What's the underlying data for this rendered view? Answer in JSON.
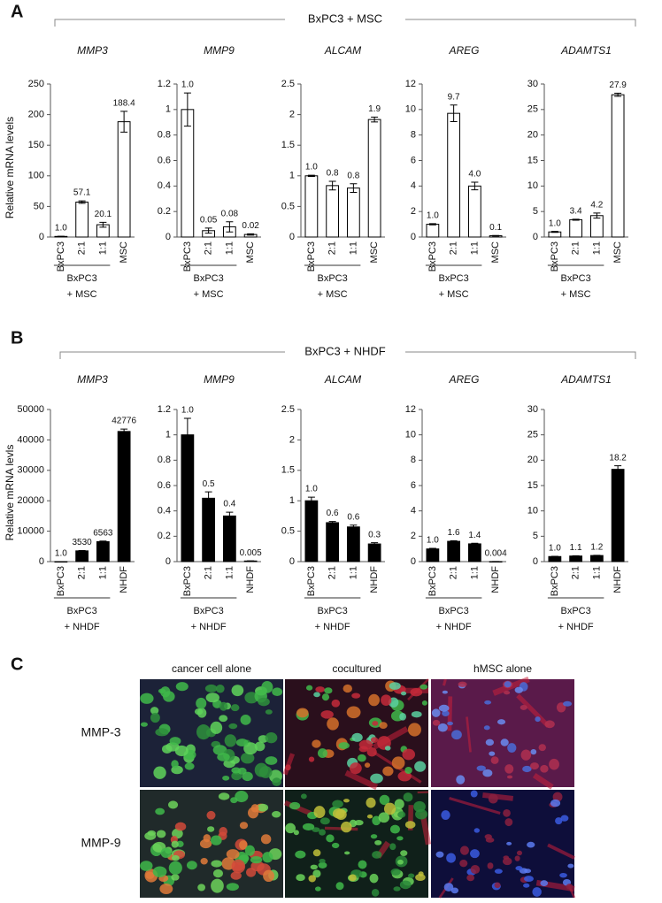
{
  "panels": {
    "a": {
      "label": "A",
      "group": "BxPC3 + MSC"
    },
    "b": {
      "label": "B",
      "group": "BxPC3 + NHDF"
    },
    "c": {
      "label": "C",
      "columns": [
        "cancer cell alone",
        "cocultured",
        "hMSC alone"
      ],
      "rows": [
        "MMP-3",
        "MMP-9"
      ]
    }
  },
  "chart_data": [
    {
      "type": "bar",
      "title": "MMP3",
      "ylabel": "Relative mRNA levels",
      "categories": [
        "BxPC3",
        "2:1",
        "1:1",
        "MSC"
      ],
      "group_label": [
        "BxPC3",
        "+ MSC"
      ],
      "values": [
        1.0,
        57.1,
        20.1,
        188.4
      ],
      "errors": [
        0.3,
        2,
        4,
        17
      ],
      "value_labels": [
        "1.0",
        "57.1",
        "20.1",
        "188.4"
      ],
      "ylim": [
        0,
        250
      ],
      "yticks": [
        0,
        50,
        100,
        150,
        200,
        250
      ],
      "color": "#ffffff"
    },
    {
      "type": "bar",
      "title": "MMP9",
      "categories": [
        "BxPC3",
        "2:1",
        "1:1",
        "MSC"
      ],
      "group_label": [
        "BxPC3",
        "+ MSC"
      ],
      "values": [
        1.0,
        0.05,
        0.08,
        0.02
      ],
      "errors": [
        0.13,
        0.02,
        0.04,
        0.005
      ],
      "value_labels": [
        "1.0",
        "0.05",
        "0.08",
        "0.02"
      ],
      "ylim": [
        0,
        1.2
      ],
      "yticks": [
        0,
        0.2,
        0.4,
        0.6,
        0.8,
        1,
        1.2
      ],
      "color": "#ffffff"
    },
    {
      "type": "bar",
      "title": "ALCAM",
      "categories": [
        "BxPC3",
        "2:1",
        "1:1",
        "MSC"
      ],
      "group_label": [
        "BxPC3",
        "+ MSC"
      ],
      "values": [
        1.0,
        0.84,
        0.8,
        1.92
      ],
      "errors": [
        0.01,
        0.07,
        0.07,
        0.04
      ],
      "value_labels": [
        "1.0",
        "0.8",
        "0.8",
        "1.9"
      ],
      "ylim": [
        0,
        2.5
      ],
      "yticks": [
        0,
        0.5,
        1,
        1.5,
        2,
        2.5
      ],
      "color": "#ffffff"
    },
    {
      "type": "bar",
      "title": "AREG",
      "categories": [
        "BxPC3",
        "2:1",
        "1:1",
        "MSC"
      ],
      "group_label": [
        "BxPC3",
        "+ MSC"
      ],
      "values": [
        1.0,
        9.7,
        4.0,
        0.1
      ],
      "errors": [
        0.05,
        0.65,
        0.3,
        0.02
      ],
      "value_labels": [
        "1.0",
        "9.7",
        "4.0",
        "0.1"
      ],
      "ylim": [
        0,
        12
      ],
      "yticks": [
        0,
        2,
        4,
        6,
        8,
        10,
        12
      ],
      "color": "#ffffff"
    },
    {
      "type": "bar",
      "title": "ADAMTS1",
      "categories": [
        "BxPC3",
        "2:1",
        "1:1",
        "MSC"
      ],
      "group_label": [
        "BxPC3",
        "+ MSC"
      ],
      "values": [
        1.0,
        3.4,
        4.2,
        27.9
      ],
      "errors": [
        0.1,
        0.1,
        0.5,
        0.3
      ],
      "value_labels": [
        "1.0",
        "3.4",
        "4.2",
        "27.9"
      ],
      "ylim": [
        0,
        30
      ],
      "yticks": [
        0,
        5,
        10,
        15,
        20,
        25,
        30
      ],
      "color": "#ffffff"
    },
    {
      "type": "bar",
      "title": "MMP3",
      "ylabel": "Relative mRNA levls",
      "categories": [
        "BxPC3",
        "2:1",
        "1:1",
        "NHDF"
      ],
      "group_label": [
        "BxPC3",
        "+ NHDF"
      ],
      "values": [
        1.0,
        3530,
        6563,
        42776
      ],
      "errors": [
        0,
        120,
        200,
        800
      ],
      "value_labels": [
        "1.0",
        "3530",
        "6563",
        "42776"
      ],
      "ylim": [
        0,
        50000
      ],
      "yticks": [
        0,
        10000,
        20000,
        30000,
        40000,
        50000
      ],
      "color": "#000000"
    },
    {
      "type": "bar",
      "title": "MMP9",
      "categories": [
        "BxPC3",
        "2:1",
        "1:1",
        "NHDF"
      ],
      "group_label": [
        "BxPC3",
        "+ NHDF"
      ],
      "values": [
        1.0,
        0.5,
        0.36,
        0.005
      ],
      "errors": [
        0.13,
        0.05,
        0.03,
        0.001
      ],
      "value_labels": [
        "1.0",
        "0.5",
        "0.4",
        "0.005"
      ],
      "ylim": [
        0,
        1.2
      ],
      "yticks": [
        0,
        0.2,
        0.4,
        0.6,
        0.8,
        1,
        1.2
      ],
      "color": "#000000"
    },
    {
      "type": "bar",
      "title": "ALCAM",
      "categories": [
        "BxPC3",
        "2:1",
        "1:1",
        "NHDF"
      ],
      "group_label": [
        "BxPC3",
        "+ NHDF"
      ],
      "values": [
        1.0,
        0.64,
        0.57,
        0.29
      ],
      "errors": [
        0.06,
        0.02,
        0.03,
        0.02
      ],
      "value_labels": [
        "1.0",
        "0.6",
        "0.6",
        "0.3"
      ],
      "ylim": [
        0,
        2.5
      ],
      "yticks": [
        0,
        0.5,
        1,
        1.5,
        2,
        2.5
      ],
      "color": "#000000"
    },
    {
      "type": "bar",
      "title": "AREG",
      "categories": [
        "BxPC3",
        "2:1",
        "1:1",
        "NHDF"
      ],
      "group_label": [
        "BxPC3",
        "+ NHDF"
      ],
      "values": [
        1.0,
        1.6,
        1.4,
        0.004
      ],
      "errors": [
        0.05,
        0.05,
        0.05,
        0.001
      ],
      "value_labels": [
        "1.0",
        "1.6",
        "1.4",
        "0.004"
      ],
      "ylim": [
        0,
        12
      ],
      "yticks": [
        0,
        2,
        4,
        6,
        8,
        10,
        12
      ],
      "color": "#000000"
    },
    {
      "type": "bar",
      "title": "ADAMTS1",
      "categories": [
        "BxPC3",
        "2:1",
        "1:1",
        "NHDF"
      ],
      "group_label": [
        "BxPC3",
        "+ NHDF"
      ],
      "values": [
        1.0,
        1.1,
        1.2,
        18.2
      ],
      "errors": [
        0.05,
        0.05,
        0.05,
        0.7
      ],
      "value_labels": [
        "1.0",
        "1.1",
        "1.2",
        "18.2"
      ],
      "ylim": [
        0,
        30
      ],
      "yticks": [
        0,
        5,
        10,
        15,
        20,
        25,
        30
      ],
      "color": "#000000"
    }
  ]
}
